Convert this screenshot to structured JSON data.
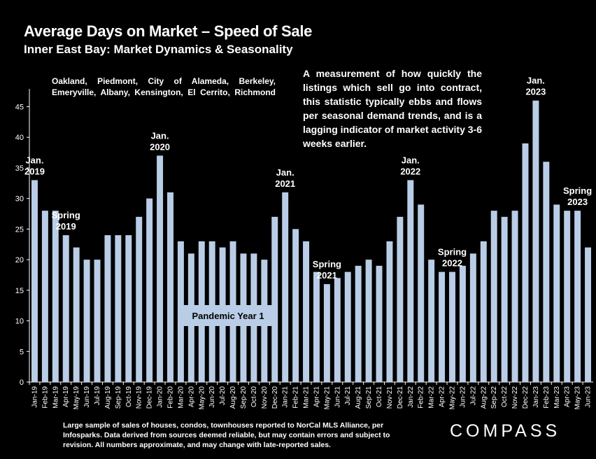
{
  "header": {
    "title": "Average Days on Market – Speed of Sale",
    "subtitle": "Inner East Bay: Market Dynamics & Seasonality"
  },
  "areas_text": "Oakland, Piedmont, City of Alameda, Berkeley, Emeryville, Albany, Kensington, El Cerrito, Richmond",
  "note_text": "A measurement of how quickly the listings which sell go into contract, this statistic typically ebbs and flows per seasonal demand trends, and is a lagging indicator of market activity 3-6 weeks earlier.",
  "footnote": "Large sample of sales of houses, condos, townhouses reported to NorCal MLS Alliance, per Infosparks. Data derived from sources deemed reliable, but may contain errors and subject to revision. All numbers approximate, and may change with late-reported sales.",
  "logo": "COMPASS",
  "colors": {
    "bar": "#b9cde6",
    "background": "#000000",
    "text": "#ffffff"
  },
  "chart_data": {
    "type": "bar",
    "title": "Average Days on Market – Speed of Sale",
    "ylim": [
      0,
      47
    ],
    "yticks": [
      0,
      5,
      10,
      15,
      20,
      25,
      30,
      35,
      40,
      45
    ],
    "grid": false,
    "categories": [
      "Jan-19",
      "Feb-19",
      "Mar-19",
      "Apr-19",
      "May-19",
      "Jun-19",
      "Jul-19",
      "Aug-19",
      "Sep-19",
      "Oct-19",
      "Nov-19",
      "Dec-19",
      "Jan-20",
      "Feb-20",
      "Mar-20",
      "Apr-20",
      "May-20",
      "Jun-20",
      "Jul-20",
      "Aug-20",
      "Sep-20",
      "Oct-20",
      "Nov-20",
      "Dec-20",
      "Jan-21",
      "Feb-21",
      "Mar-21",
      "Apr-21",
      "May-21",
      "Jun-21",
      "Jul-21",
      "Aug-21",
      "Sep-21",
      "Oct-21",
      "Nov-21",
      "Dec-21",
      "Jan-22",
      "Feb-22",
      "Mar-22",
      "Apr-22",
      "May-22",
      "Jun-22",
      "Jul-22",
      "Aug-22",
      "Sep-22",
      "Oct-22",
      "Nov-22",
      "Dec-22",
      "Jan-23",
      "Feb-23",
      "Mar-23",
      "Apr-23",
      "May-23",
      "Jun-23"
    ],
    "values": [
      33,
      28,
      28,
      24,
      22,
      20,
      20,
      24,
      24,
      24,
      27,
      30,
      37,
      31,
      23,
      21,
      23,
      23,
      22,
      23,
      21,
      21,
      20,
      27,
      31,
      25,
      23,
      18,
      16,
      17,
      18,
      19,
      20,
      19,
      23,
      27,
      33,
      29,
      20,
      18,
      18,
      19,
      21,
      23,
      28,
      27,
      28,
      39,
      46,
      36,
      29,
      28,
      28,
      22
    ],
    "annotations": [
      {
        "index": 0,
        "lines": [
          "Jan.",
          "2019"
        ]
      },
      {
        "index": 3,
        "lines": [
          "Spring",
          "2019"
        ]
      },
      {
        "index": 12,
        "lines": [
          "Jan.",
          "2020"
        ]
      },
      {
        "index": 24,
        "lines": [
          "Jan.",
          "2021"
        ]
      },
      {
        "index": 28,
        "lines": [
          "Spring",
          "2021"
        ]
      },
      {
        "index": 36,
        "lines": [
          "Jan.",
          "2022"
        ]
      },
      {
        "index": 40,
        "lines": [
          "Spring",
          "2022"
        ]
      },
      {
        "index": 48,
        "lines": [
          "Jan.",
          "2023"
        ]
      },
      {
        "index": 52,
        "lines": [
          "Spring",
          "2023"
        ]
      }
    ],
    "callout": "Pandemic Year 1"
  }
}
